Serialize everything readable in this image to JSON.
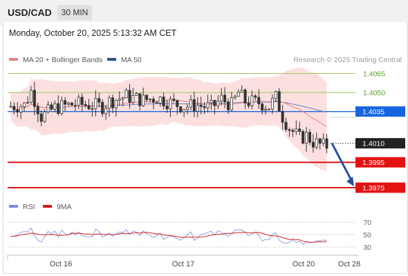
{
  "header": {
    "symbol": "USD/CAD",
    "timeframe": "30 MIN",
    "datetime": "Monday, October 20, 2025 5:13:32 AM CET"
  },
  "legend": {
    "ma20_label": "MA 20 + Bollinger Bands",
    "ma50_label": "MA 50",
    "copyright": "Research © 2025 Trading Central",
    "rsi_label": "RSI",
    "rsi_ma_label": "9MA"
  },
  "colors": {
    "candle_up": "#ffffff",
    "candle_down": "#333333",
    "ma20": "#e88080",
    "ma50": "#6680b8",
    "bollinger_fill": "#fbdada",
    "pivot_blue": "#1565e0",
    "support_red": "#e31313",
    "resistance_green": "#9cc456",
    "last_price_bg": "#222222",
    "rsi": "#6f8fe0",
    "rsi_ma": "#d82020",
    "arrow": "#2a4f9e"
  },
  "chart_data": {
    "type": "candlestick",
    "ylim": [
      1.3972,
      1.4072
    ],
    "x_ticks": [
      "Oct 16",
      "Oct 17",
      "Oct 20",
      "Oct 28"
    ],
    "levels": [
      {
        "value": 1.4065,
        "label": "1.4065",
        "kind": "resistance"
      },
      {
        "value": 1.405,
        "label": "1.4050",
        "kind": "resistance"
      },
      {
        "value": 1.4035,
        "label": "1.4035",
        "kind": "pivot"
      },
      {
        "value": 1.401,
        "label": "1.4010",
        "kind": "last"
      },
      {
        "value": 1.3995,
        "label": "1.3995",
        "kind": "support"
      },
      {
        "value": 1.3975,
        "label": "1.3975",
        "kind": "support"
      }
    ],
    "forecast_arrow": {
      "from": 1.401,
      "to": 1.3975
    },
    "rsi": {
      "levels": [
        70,
        50,
        30
      ],
      "labels": [
        "70",
        "50",
        "30"
      ],
      "ylim": [
        25,
        75
      ]
    }
  }
}
